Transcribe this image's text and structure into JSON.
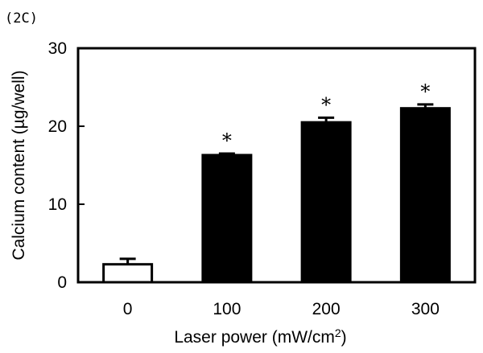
{
  "panel_label": "(2C)",
  "chart_data": {
    "type": "bar",
    "categories": [
      "0",
      "100",
      "200",
      "300"
    ],
    "values": [
      2.3,
      16.3,
      20.5,
      22.3
    ],
    "errors": [
      0.7,
      0.2,
      0.6,
      0.5
    ],
    "annotations": [
      "",
      "*",
      "*",
      "*"
    ],
    "bar_fills": [
      "#ffffff",
      "#000000",
      "#000000",
      "#000000"
    ],
    "xlabel_main": "Laser power (mW/cm",
    "xlabel_sup": "2",
    "xlabel_close": ")",
    "ylabel": "Calcium content (µg/well)",
    "ylim": [
      0,
      30
    ],
    "yticks": [
      0,
      10,
      20,
      30
    ]
  }
}
